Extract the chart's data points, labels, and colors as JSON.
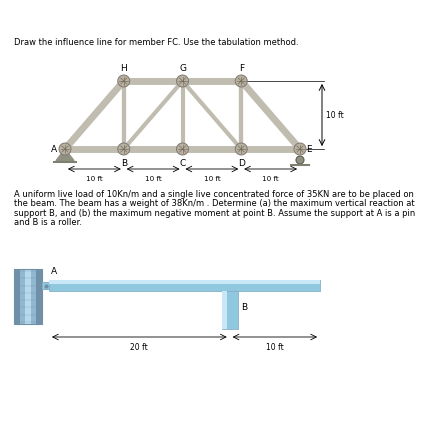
{
  "title_text": "Draw the influence line for member FC. Use the tabulation method.",
  "nodes_bottom_labels": [
    "A",
    "B",
    "C",
    "D",
    "E"
  ],
  "nodes_top_labels": [
    "H",
    "G",
    "F"
  ],
  "text_block": "A uniform live load of 10Kn/m and a single live concentrated force of 35KN are to be placed on the beam. The beam has a weight of 38Kn/m . Determine (a) the maximum vertical reaction at support B, and (b) the maximum negative moment at point B. Assume the support at A is a pin and B is a roller.",
  "text_fontsize": 6.0,
  "truss_color": "#c0bdb0",
  "truss_edge": "#a0a090",
  "joint_fill": "#b8b0a0",
  "joint_edge": "#807870",
  "wall_color_dark": "#7090a8",
  "wall_color_mid": "#90b8d0",
  "wall_color_light": "#b8d8ec",
  "beam_color_mid": "#90c8e0",
  "beam_color_light": "#c8e8f8",
  "support_col_dark": "#88b0c8",
  "background": "#ffffff",
  "text_color": "#000000",
  "dim_color": "#000000"
}
